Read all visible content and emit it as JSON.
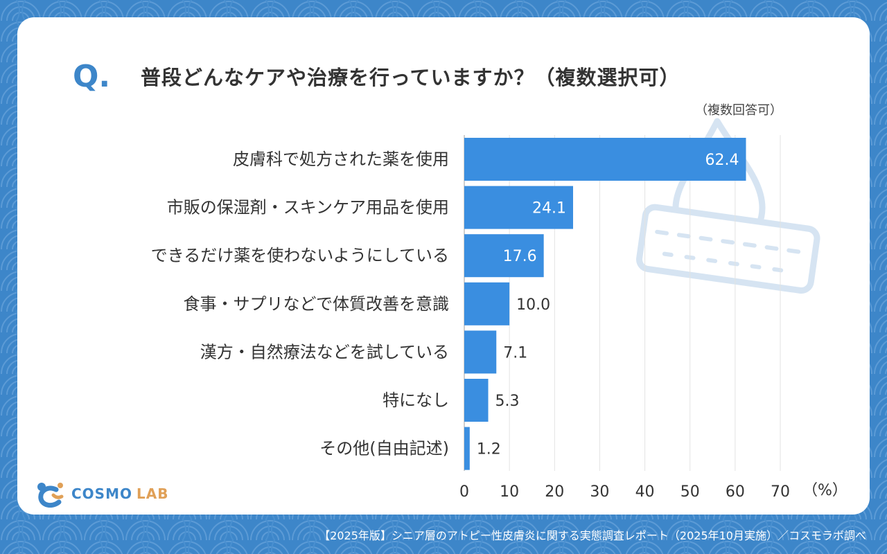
{
  "question": {
    "mark": "Q.",
    "text": "普段どんなケアや治療を行っていますか？（複数選択可）",
    "note": "（複数回答可）"
  },
  "logo": {
    "name": "COSMO",
    "suffix": "LAB"
  },
  "footer": {
    "text": "【2025年版】シニア層のアトピー性皮膚炎に関する実態調査レポート（2025年10月実施）／コスモラボ調べ"
  },
  "colors": {
    "bar": "#3a8ee0",
    "accent": "#3d86c9",
    "background": "#3d86c9"
  },
  "chart_data": {
    "type": "bar",
    "orientation": "horizontal",
    "title": "普段どんなケアや治療を行っていますか？（複数選択可）",
    "unit_label": "（%）",
    "categories": [
      "皮膚科で処方された薬を使用",
      "市販の保湿剤・スキンケア用品を使用",
      "できるだけ薬を使わないようにしている",
      "食事・サプリなどで体質改善を意識",
      "漢方・自然療法などを試している",
      "特になし",
      "その他(自由記述)"
    ],
    "values": [
      62.4,
      24.1,
      17.6,
      10.0,
      7.1,
      5.3,
      1.2
    ],
    "value_labels": [
      "62.4",
      "24.1",
      "17.6",
      "10.0",
      "7.1",
      "5.3",
      "1.2"
    ],
    "xlim": [
      0,
      70
    ],
    "ticks": [
      0,
      10,
      20,
      30,
      40,
      50,
      60,
      70
    ],
    "grid": true
  }
}
